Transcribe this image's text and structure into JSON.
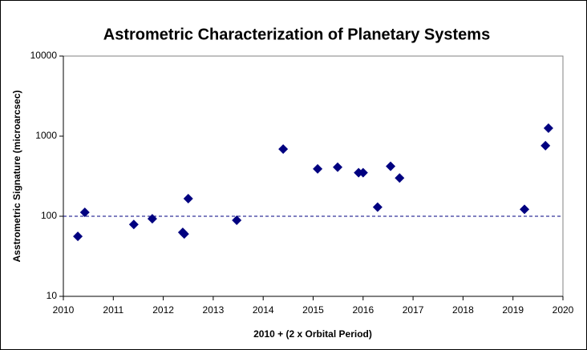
{
  "chart_data": {
    "type": "scatter",
    "title": "Astrometric Characterization of Planetary Systems",
    "x_label": "2010 + (2 x Orbital Period)",
    "y_label": "Asstrometric Signature (microarcsec)",
    "log_y": true,
    "grid": false,
    "color": "#000080",
    "reference_line": 100,
    "xlim": [
      2010,
      2020
    ],
    "xticks": [
      2010,
      2011,
      2012,
      2013,
      2014,
      2015,
      2016,
      2017,
      2018,
      2019,
      2020
    ],
    "ylim": [
      10,
      10000
    ],
    "yticks": [
      10,
      100,
      1000,
      10000
    ],
    "x": [
      2010.29,
      2010.43,
      2011.41,
      2011.78,
      2012.39,
      2012.42,
      2012.5,
      2013.47,
      2014.4,
      2015.09,
      2015.49,
      2015.91,
      2016.0,
      2016.29,
      2016.55,
      2016.73,
      2019.23,
      2019.65,
      2019.71
    ],
    "values": [
      56,
      112,
      79,
      93,
      63,
      60,
      166,
      89,
      690,
      390,
      410,
      350,
      350,
      130,
      420,
      300,
      122,
      760,
      1260
    ]
  }
}
